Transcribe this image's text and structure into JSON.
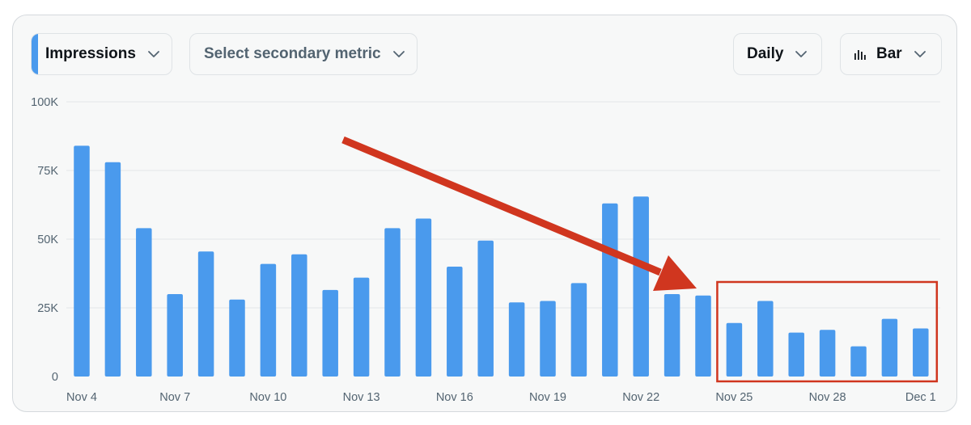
{
  "controls": {
    "primary_metric": "Impressions",
    "secondary_metric_placeholder": "Select secondary metric",
    "interval": "Daily",
    "chart_type_label": "Bar"
  },
  "colors": {
    "bar": "#4a9aed",
    "accent": "#4a9aed",
    "annotation": "#d0361f",
    "grid": "#e3e6e8",
    "axis_text": "#536471"
  },
  "chart_data": {
    "type": "bar",
    "title": "",
    "xlabel": "",
    "ylabel": "",
    "ylim": [
      0,
      100000
    ],
    "yticks": [
      0,
      25000,
      50000,
      75000,
      100000
    ],
    "ytick_labels": [
      "0",
      "25K",
      "50K",
      "75K",
      "100K"
    ],
    "categories": [
      "Nov 4",
      "Nov 5",
      "Nov 6",
      "Nov 7",
      "Nov 8",
      "Nov 9",
      "Nov 10",
      "Nov 11",
      "Nov 12",
      "Nov 13",
      "Nov 14",
      "Nov 15",
      "Nov 16",
      "Nov 17",
      "Nov 18",
      "Nov 19",
      "Nov 20",
      "Nov 21",
      "Nov 22",
      "Nov 23",
      "Nov 24",
      "Nov 25",
      "Nov 26",
      "Nov 27",
      "Nov 28",
      "Nov 29",
      "Nov 30",
      "Dec 1"
    ],
    "xtick_labels": [
      {
        "index": 0,
        "label": "Nov 4"
      },
      {
        "index": 3,
        "label": "Nov 7"
      },
      {
        "index": 6,
        "label": "Nov 10"
      },
      {
        "index": 9,
        "label": "Nov 13"
      },
      {
        "index": 12,
        "label": "Nov 16"
      },
      {
        "index": 15,
        "label": "Nov 19"
      },
      {
        "index": 18,
        "label": "Nov 22"
      },
      {
        "index": 21,
        "label": "Nov 25"
      },
      {
        "index": 24,
        "label": "Nov 28"
      },
      {
        "index": 27,
        "label": "Dec 1"
      }
    ],
    "values": [
      84000,
      78000,
      54000,
      30000,
      45500,
      28000,
      41000,
      44500,
      31500,
      36000,
      54000,
      57500,
      40000,
      49500,
      27000,
      27500,
      34000,
      63000,
      65500,
      30000,
      29500,
      19500,
      27500,
      16000,
      17000,
      11000,
      21000,
      17500
    ],
    "grid": true,
    "legend": "none",
    "annotations": [
      {
        "kind": "arrow",
        "description": "red arrow pointing down toward the final week"
      },
      {
        "kind": "highlight-box",
        "from_index": 21,
        "to_index": 27
      }
    ]
  }
}
